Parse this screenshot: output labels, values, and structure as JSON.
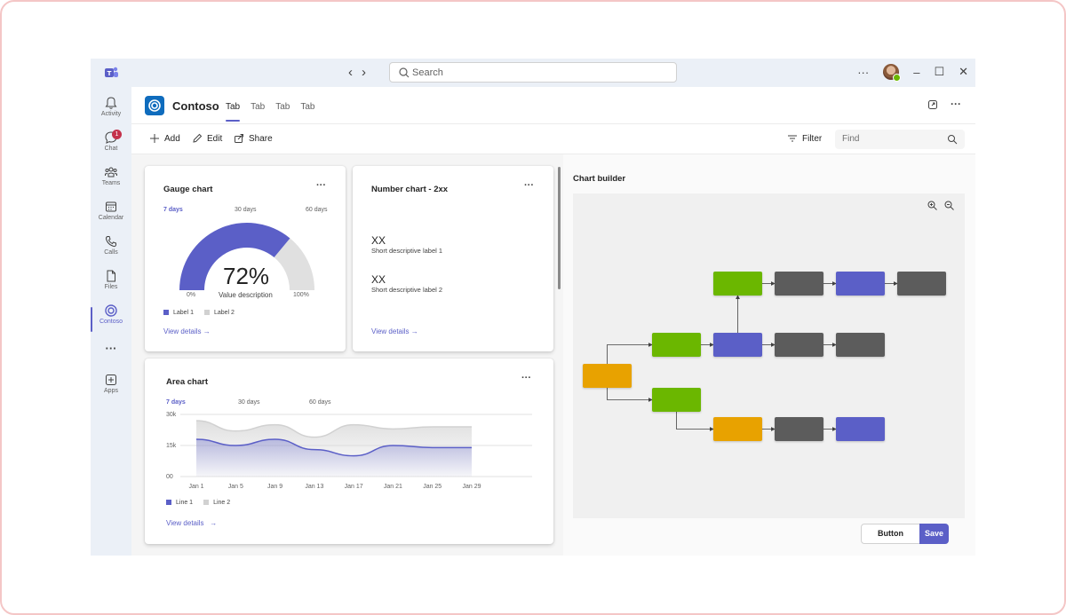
{
  "titlebar": {
    "search_placeholder": "Search"
  },
  "rail": {
    "items": [
      {
        "label": "Activity",
        "icon": "bell-icon"
      },
      {
        "label": "Chat",
        "icon": "chat-icon",
        "badge": "1"
      },
      {
        "label": "Teams",
        "icon": "teams-icon"
      },
      {
        "label": "Calendar",
        "icon": "calendar-icon"
      },
      {
        "label": "Calls",
        "icon": "phone-icon"
      },
      {
        "label": "Files",
        "icon": "file-icon"
      },
      {
        "label": "Contoso",
        "icon": "contoso-icon",
        "active": true
      },
      {
        "label": "Apps",
        "icon": "add-apps-icon"
      }
    ]
  },
  "app": {
    "title": "Contoso",
    "tabs": [
      "Tab",
      "Tab",
      "Tab",
      "Tab"
    ]
  },
  "toolbar": {
    "add_label": "Add",
    "edit_label": "Edit",
    "share_label": "Share",
    "filter_label": "Filter",
    "find_placeholder": "Find"
  },
  "gauge_card": {
    "title": "Gauge chart",
    "ranges": [
      "7 days",
      "30 days",
      "60 days"
    ],
    "value_text": "72%",
    "value_fraction": 0.72,
    "min_label": "0%",
    "max_label": "100%",
    "value_description": "Value description",
    "legend": [
      "Label 1",
      "Label 2"
    ],
    "view_details": "View details"
  },
  "number_card": {
    "title": "Number chart - 2xx",
    "items": [
      {
        "value": "XX",
        "label": "Short descriptive label 1"
      },
      {
        "value": "XX",
        "label": "Short descriptive label 2"
      }
    ],
    "view_details": "View details"
  },
  "area_card": {
    "title": "Area chart",
    "ranges": [
      "7 days",
      "30 days",
      "60 days"
    ],
    "legend": [
      "Line 1",
      "Line 2"
    ],
    "view_details": "View details"
  },
  "chart_data": {
    "type": "area",
    "x": [
      "Jan 1",
      "Jan 5",
      "Jan 9",
      "Jan 13",
      "Jan 17",
      "Jan 21",
      "Jan 25",
      "Jan 29"
    ],
    "ytick_labels": [
      "30k",
      "15k",
      "00"
    ],
    "ylim": [
      0,
      30
    ],
    "series": [
      {
        "name": "Line 1",
        "values": [
          18,
          15,
          18,
          13,
          10,
          15,
          14,
          14
        ]
      },
      {
        "name": "Line 2",
        "values": [
          27,
          22,
          25,
          19,
          25,
          23,
          24,
          24
        ]
      }
    ],
    "grid": true
  },
  "builder": {
    "title": "Chart builder",
    "nodes": [
      {
        "color": "#e8a200"
      },
      {
        "color": "#6bb700"
      },
      {
        "color": "#6bb700"
      },
      {
        "color": "#6bb700"
      },
      {
        "color": "#5b5fc7"
      },
      {
        "color": "#5c5c5c"
      },
      {
        "color": "#5b5fc7"
      },
      {
        "color": "#5c5c5c"
      },
      {
        "color": "#5c5c5c"
      },
      {
        "color": "#5c5c5c"
      },
      {
        "color": "#e8a200"
      },
      {
        "color": "#5c5c5c"
      },
      {
        "color": "#5b5fc7"
      }
    ],
    "button_label": "Button",
    "save_label": "Save"
  },
  "colors": {
    "brand": "#5b5fc7",
    "line2": "#d1d1d1"
  }
}
